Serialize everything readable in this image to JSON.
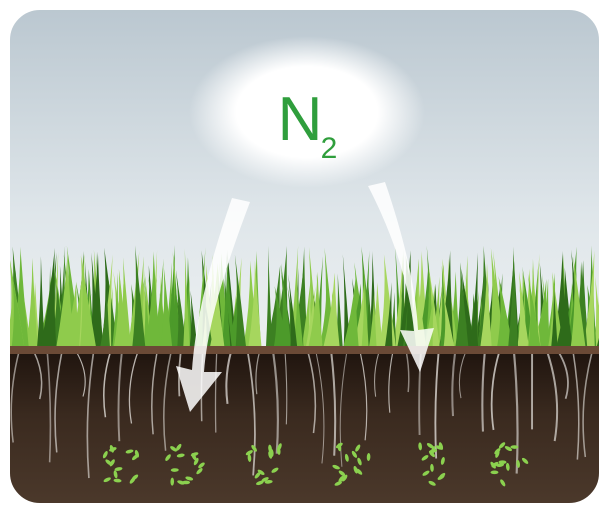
{
  "label": {
    "symbol": "N",
    "subscript": "2"
  }
}
